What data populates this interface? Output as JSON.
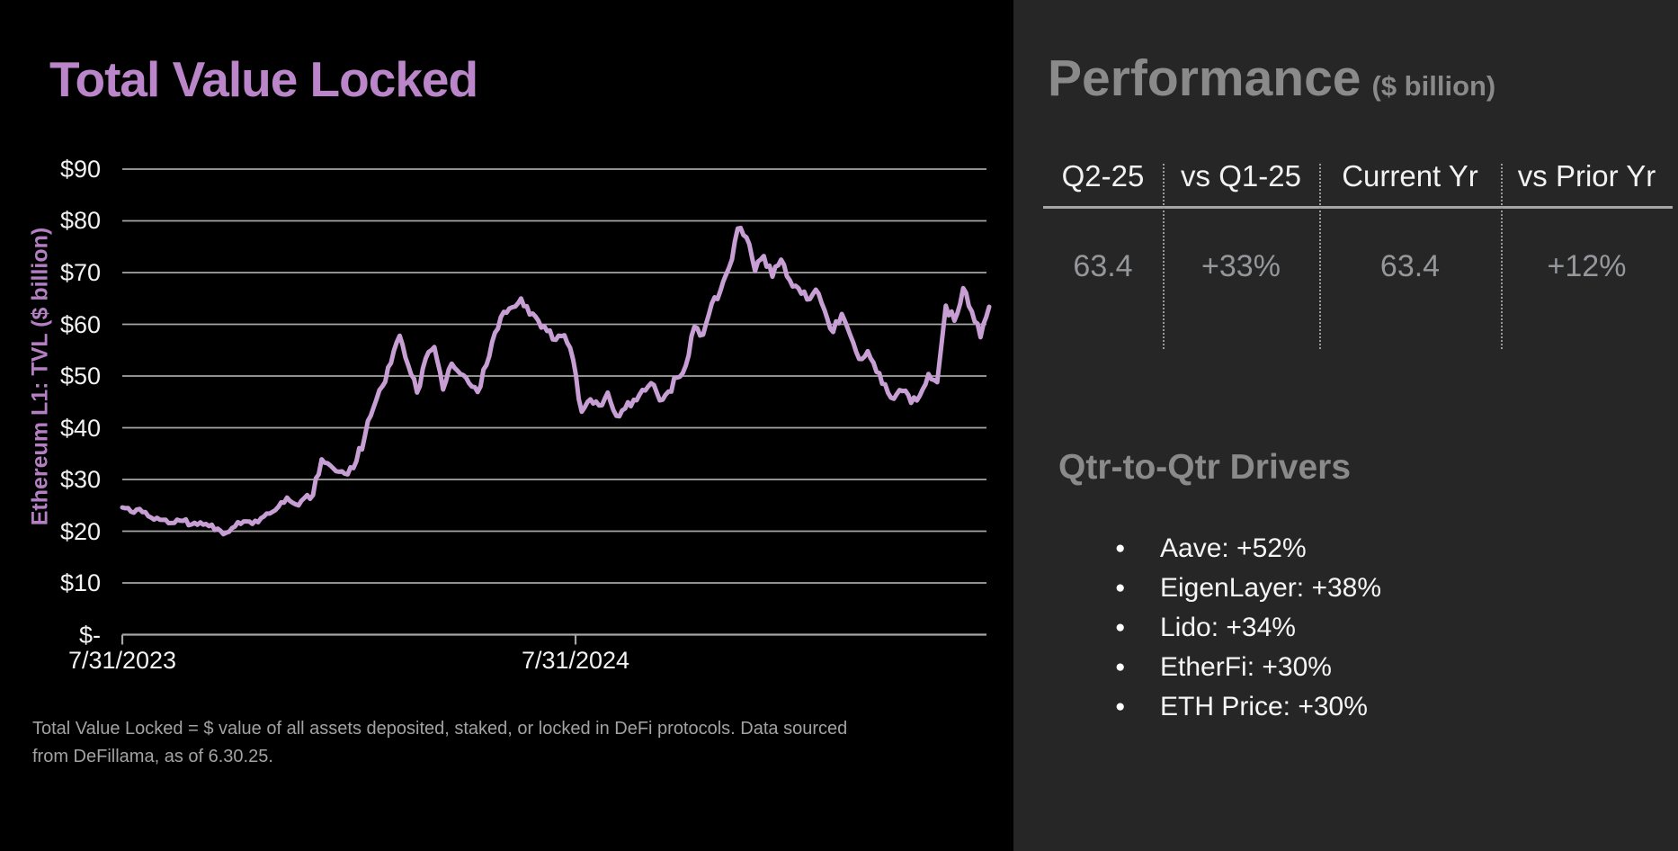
{
  "left_panel": {
    "title": "Total Value Locked",
    "footnote": "Total Value Locked = $ value of all assets deposited, staked, or locked in DeFi protocols. Data sourced from DeFillama, as of 6.30.25."
  },
  "chart_data": {
    "type": "line",
    "title": "Total Value Locked",
    "ylabel": "Ethereum L1: TVL ($ billion)",
    "ylim": [
      0,
      90
    ],
    "grid": true,
    "y_ticks": [
      "$90",
      "$80",
      "$70",
      "$60",
      "$50",
      "$40",
      "$30",
      "$20",
      "$10",
      "$-"
    ],
    "x_ticks": [
      "7/31/2023",
      "7/31/2024"
    ],
    "x_span_days": 700,
    "x_tick_positions_days": [
      0,
      366
    ],
    "line_color": "#c89fd4",
    "series": [
      {
        "name": "Ethereum L1 TVL ($ billion)",
        "cadence": "weekly",
        "start": "7/31/2023",
        "end": "6/30/2025",
        "values": [
          24.6,
          23.8,
          24.3,
          22.9,
          22.6,
          22.2,
          21.6,
          22.0,
          21.3,
          21.7,
          21.0,
          20.5,
          19.7,
          20.9,
          21.9,
          21.4,
          22.5,
          23.4,
          24.7,
          26.5,
          25.2,
          26.4,
          27.0,
          33.9,
          32.7,
          31.5,
          31.0,
          33.5,
          38.5,
          44.0,
          48.0,
          52.5,
          57.8,
          52.0,
          46.8,
          53.4,
          55.6,
          47.4,
          52.4,
          50.4,
          48.6,
          46.9,
          52.1,
          58.4,
          62.4,
          63.3,
          65.0,
          61.9,
          60.7,
          58.7,
          57.0,
          57.9,
          53.2,
          43.1,
          45.5,
          44.3,
          46.8,
          42.3,
          43.7,
          45.4,
          47.3,
          48.6,
          45.3,
          47.0,
          49.7,
          52.0,
          59.5,
          58.0,
          64.0,
          66.5,
          71.0,
          78.5,
          76.8,
          70.3,
          73.2,
          69.2,
          72.5,
          68.5,
          67.0,
          64.8,
          66.7,
          62.8,
          58.5,
          62.0,
          57.8,
          53.3,
          54.8,
          50.8,
          48.4,
          45.6,
          47.1,
          44.8,
          46.2,
          50.4,
          48.8,
          63.6,
          60.7,
          67.0,
          62.5,
          57.5,
          63.4
        ]
      }
    ]
  },
  "right_panel": {
    "title": "Performance",
    "title_unit": "($ billion)",
    "table": {
      "columns": [
        "Q2-25",
        "vs Q1-25",
        "Current Yr",
        "vs Prior Yr"
      ],
      "values": [
        "63.4",
        "+33%",
        "63.4",
        "+12%"
      ]
    },
    "drivers": {
      "heading": "Qtr-to-Qtr Drivers",
      "items": [
        "Aave: +52%",
        "EigenLayer: +38%",
        "Lido: +34%",
        "EtherFi: +30%",
        "ETH Price: +30%"
      ]
    }
  },
  "colors": {
    "left_background": "#000000",
    "right_background": "#262626",
    "title_purple": "#bb85c9",
    "line_purple": "#c89fd4",
    "gridline_gray": "#a6a6a6",
    "muted_heading_gray": "#8a8a8a",
    "value_gray": "#95979a",
    "text_white": "#f2f2f2"
  }
}
